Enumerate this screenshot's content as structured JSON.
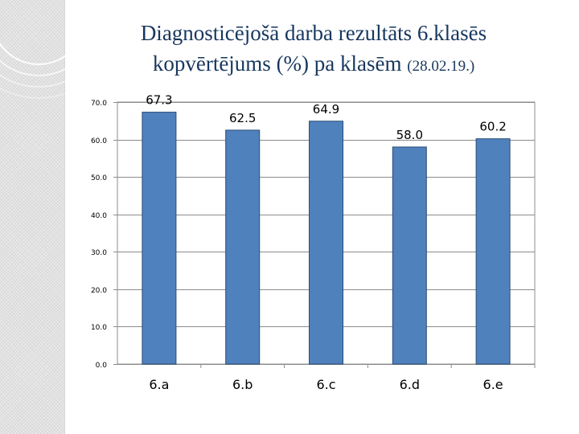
{
  "slide": {
    "title_line1": "Diagnosticējošā darba rezultāts 6.klasēs",
    "title_line2_main": "kopvērtējums (%)  pa klasēm ",
    "title_line2_date": "(28.02.19.)"
  },
  "colors": {
    "bar": "#4f81bd",
    "bar_border": "#2c4d75",
    "title": "#17375e",
    "axis_text": "#000000"
  },
  "chart_data": {
    "type": "bar",
    "title": "Diagnosticējošā darba rezultāts 6.klasēs kopvērtējums (%)  pa klasēm (28.02.19.)",
    "categories": [
      "6.a",
      "6.b",
      "6.c",
      "6.d",
      "6.e"
    ],
    "values": [
      67.3,
      62.5,
      64.9,
      58.0,
      60.2
    ],
    "data_labels": [
      "67.3",
      "62.5",
      "64.9",
      "58.0",
      "60.2"
    ],
    "y_ticks": [
      "0.0",
      "10.0",
      "20.0",
      "30.0",
      "40.0",
      "50.0",
      "60.0",
      "70.0"
    ],
    "xlabel": "",
    "ylabel": "",
    "ylim": [
      0,
      70
    ],
    "grid": true,
    "legend": "none"
  }
}
